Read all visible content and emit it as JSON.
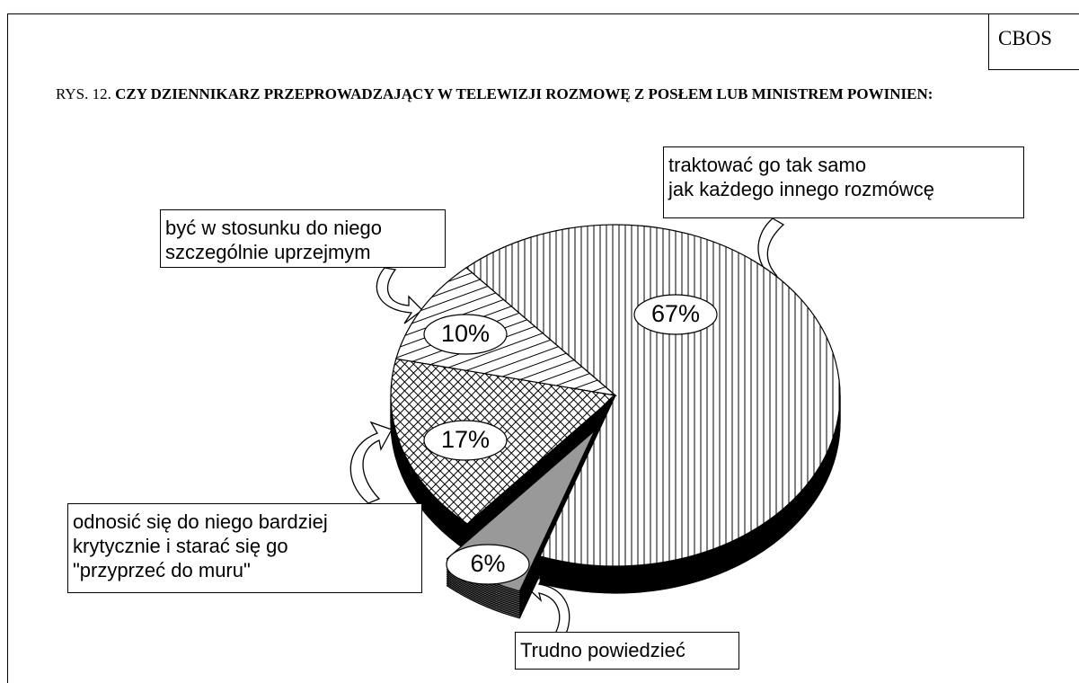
{
  "chart_data": {
    "type": "pie",
    "source": "CBOS",
    "figure_label": "RYS. 12.",
    "title": "CZY DZIENNIKARZ PRZEPROWADZAJĄCY W TELEWIZJI ROZMOWĘ Z POSŁEM LUB MINISTREM POWINIEN:",
    "categories": [
      "traktować go tak samo\njak każdego innego rozmówcę",
      "Trudno powiedzieć",
      "odnosić się do niego bardziej\nkrytycznie i starać się go\n\"przyprzeć do muru\"",
      "być w stosunku do niego\nszczególnie uprzejmym"
    ],
    "values": [
      67,
      6,
      17,
      10
    ],
    "value_labels": [
      "67%",
      "6%",
      "17%",
      "10%"
    ],
    "patterns": [
      "vertical",
      "solid",
      "crosshatch",
      "horizontal"
    ]
  }
}
